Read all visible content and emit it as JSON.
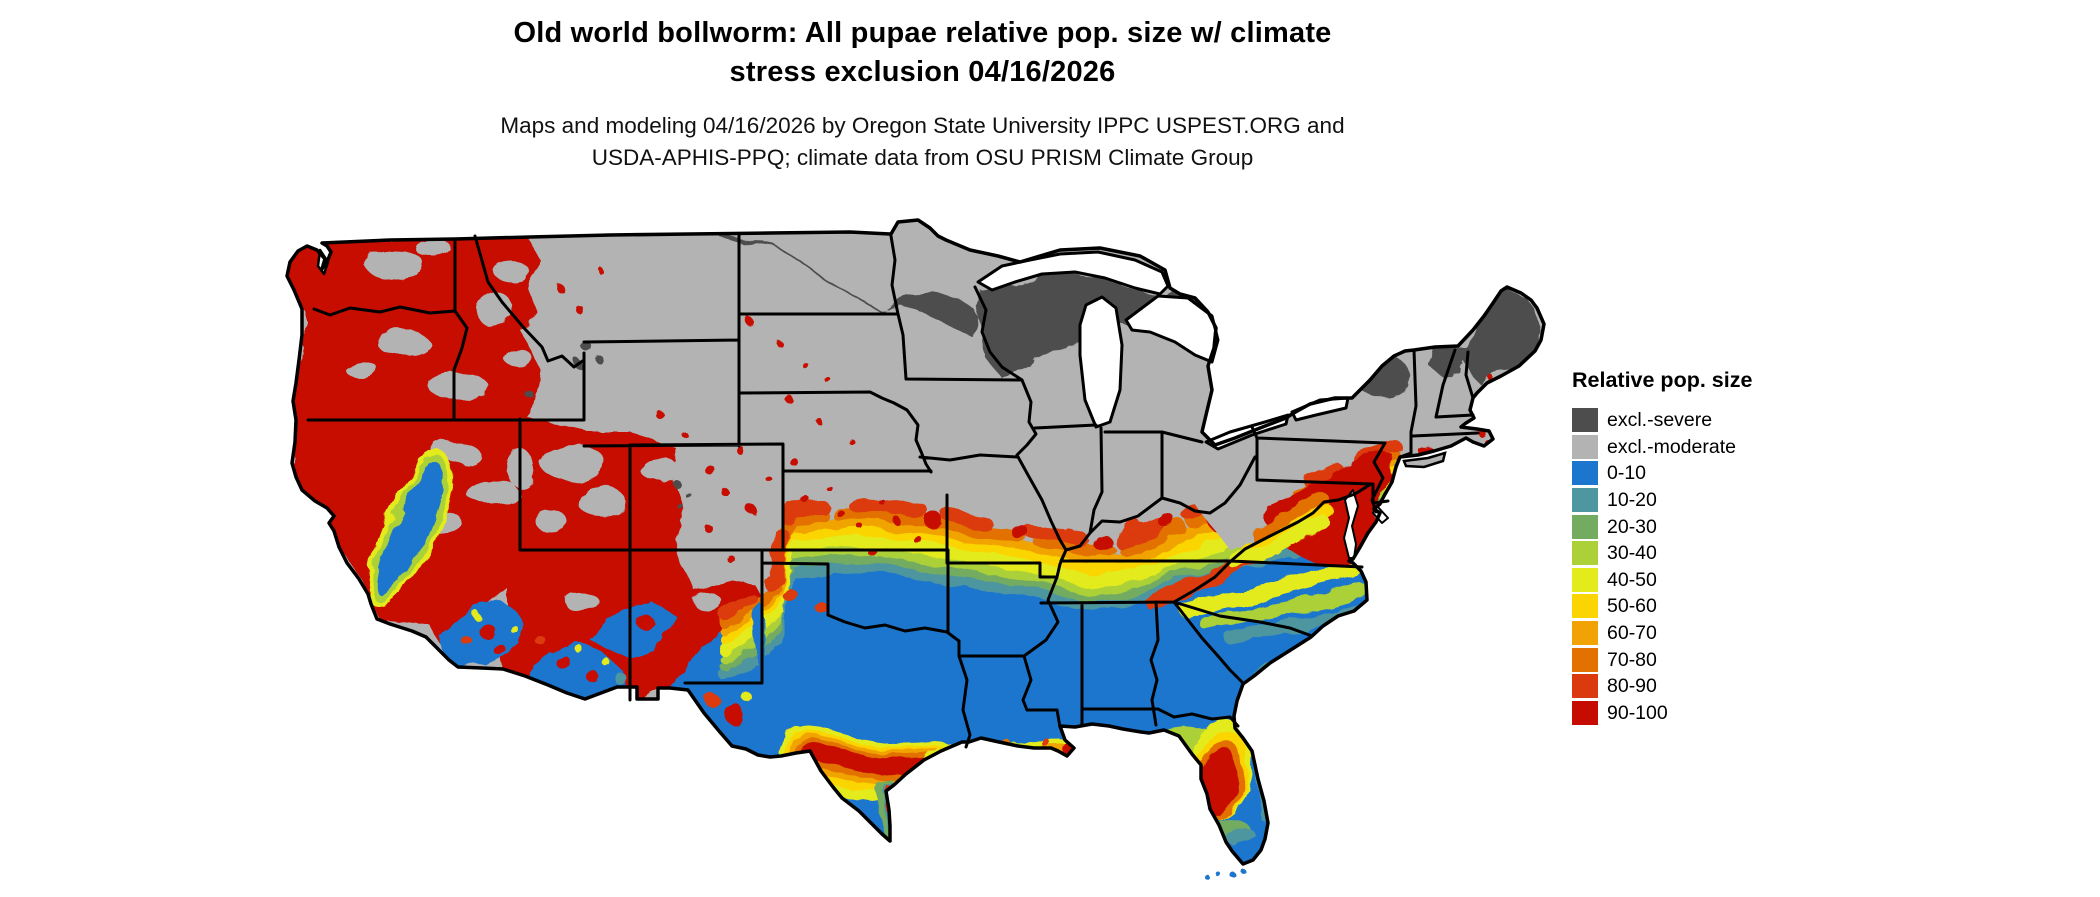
{
  "title": {
    "line1": "Old world bollworm: All pupae relative pop. size w/ climate",
    "line2": "stress exclusion 04/16/2026"
  },
  "subtitle": {
    "line1": "Maps and modeling 04/16/2026 by Oregon State University IPPC USPEST.ORG and",
    "line2": "USDA-APHIS-PPQ; climate data from OSU PRISM Climate Group"
  },
  "legend": {
    "title": "Relative pop. size",
    "items": [
      {
        "label": "excl.-severe",
        "color": "#4D4D4D"
      },
      {
        "label": "excl.-moderate",
        "color": "#B3B3B3"
      },
      {
        "label": "0-10",
        "color": "#1D76CE"
      },
      {
        "label": "10-20",
        "color": "#4E96A0"
      },
      {
        "label": "20-30",
        "color": "#73AC61"
      },
      {
        "label": "30-40",
        "color": "#ACD037"
      },
      {
        "label": "40-50",
        "color": "#E4EB1B"
      },
      {
        "label": "50-60",
        "color": "#FBD501"
      },
      {
        "label": "60-70",
        "color": "#F1A305"
      },
      {
        "label": "70-80",
        "color": "#E27100"
      },
      {
        "label": "80-90",
        "color": "#DB3A0E"
      },
      {
        "label": "90-100",
        "color": "#C60C00"
      }
    ]
  },
  "map": {
    "water_color": "#FFFFFF",
    "border_color": "#000000"
  }
}
